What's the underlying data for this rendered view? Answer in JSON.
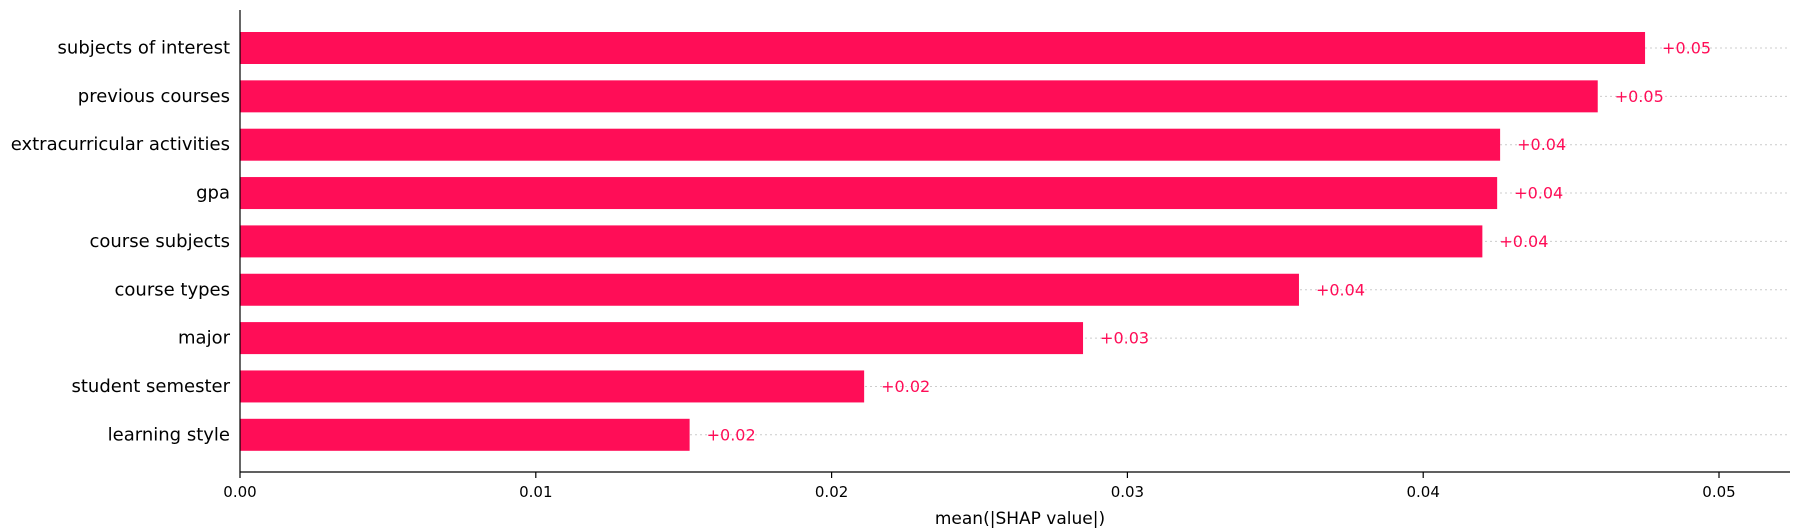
{
  "chart_data": {
    "type": "bar",
    "orientation": "horizontal",
    "categories": [
      "subjects of interest",
      "previous courses",
      "extracurricular activities",
      "gpa",
      "course subjects",
      "course types",
      "major",
      "student semester",
      "learning style"
    ],
    "values": [
      0.0475,
      0.0459,
      0.0426,
      0.0425,
      0.042,
      0.0358,
      0.0285,
      0.0211,
      0.0152
    ],
    "value_labels": [
      "+0.05",
      "+0.05",
      "+0.04",
      "+0.04",
      "+0.04",
      "+0.04",
      "+0.03",
      "+0.02",
      "+0.02"
    ],
    "xlabel": "mean(|SHAP value|)",
    "xlim": [
      0,
      0.0524
    ],
    "xticks": [
      0.0,
      0.01,
      0.02,
      0.03,
      0.04,
      0.05
    ],
    "xtick_labels": [
      "0.00",
      "0.01",
      "0.02",
      "0.03",
      "0.04",
      "0.05"
    ],
    "bar_color": "#ff0d57",
    "label_color": "#ff0d57",
    "grid": false
  }
}
